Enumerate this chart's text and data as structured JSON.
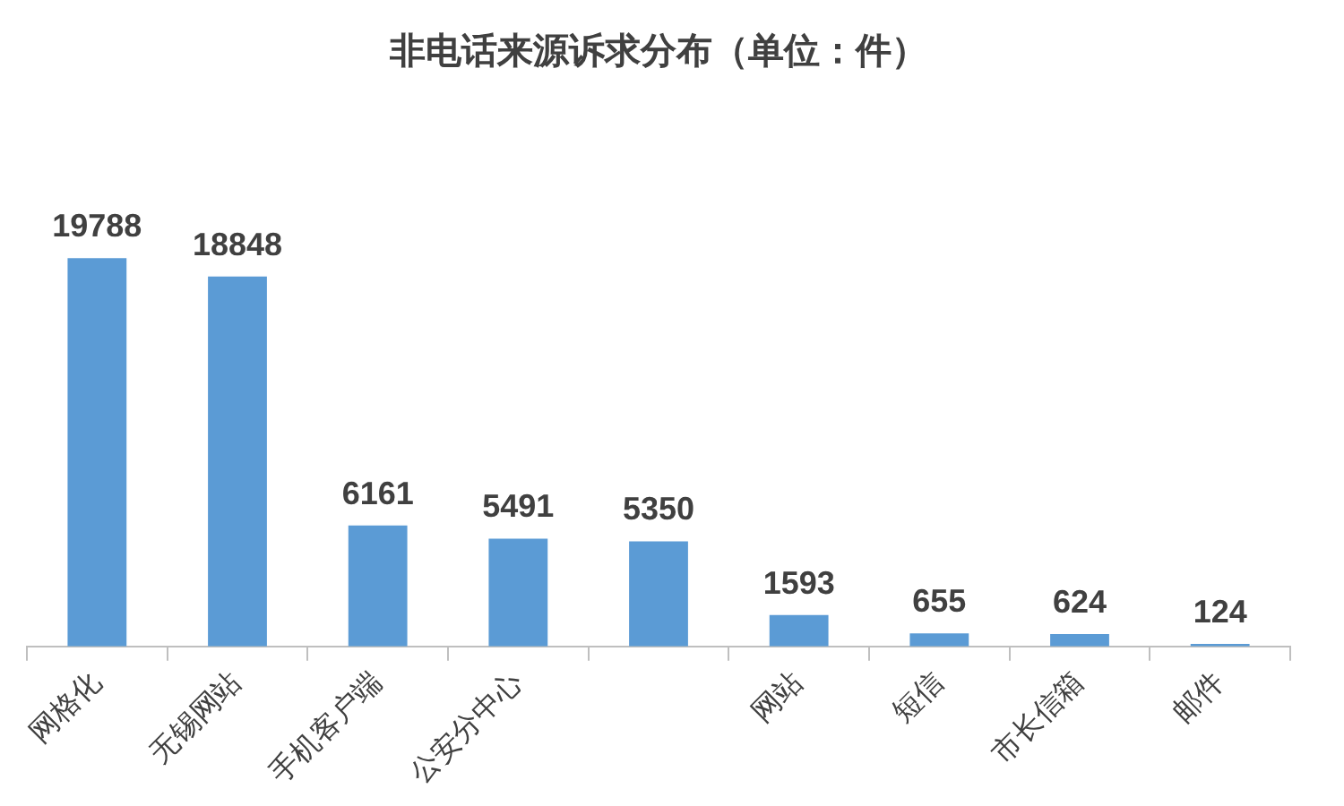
{
  "chart_data": {
    "type": "bar",
    "title": "非电话来源诉求分布（单位：件）",
    "categories": [
      "网格化",
      "无锡网站",
      "手机客户端",
      "公安分中心",
      null,
      "网站",
      "短信",
      "市长信箱",
      "邮件"
    ],
    "values": [
      19788,
      18848,
      6161,
      5491,
      5350,
      1593,
      655,
      624,
      124
    ],
    "color": "#5b9bd5",
    "data_labels": true,
    "grid": false,
    "legend": false
  }
}
